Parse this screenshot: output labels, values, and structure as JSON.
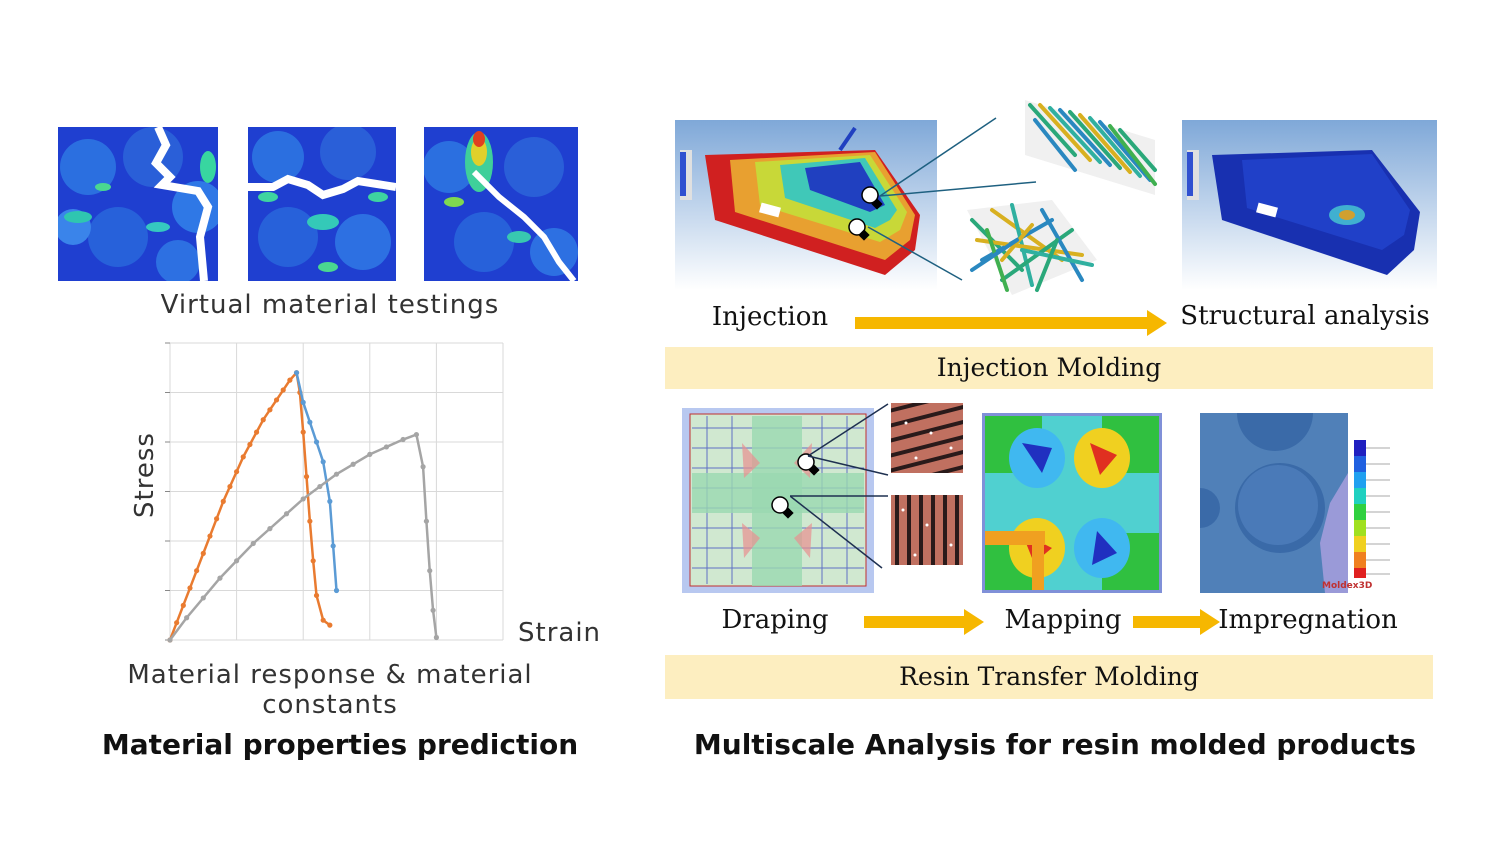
{
  "left": {
    "testing_caption": "Virtual material testings",
    "chart_caption": "Material response & material constants",
    "section_title": "Material properties prediction"
  },
  "right": {
    "injection_label": "Injection",
    "structural_label": "Structural analysis",
    "injection_banner": "Injection Molding",
    "draping_label": "Draping",
    "mapping_label": "Mapping",
    "impregnation_label": "Impregnation",
    "rtm_banner": "Resin Transfer Molding",
    "section_title": "Multiscale Analysis for resin molded products",
    "moldex_logo": "Moldex3D"
  },
  "colors": {
    "banner": "#fdeec0",
    "arrow": "#f6b700",
    "series_orange": "#e97b30",
    "series_blue": "#5b9bd5",
    "series_gray": "#a5a5a5"
  },
  "chart_data": {
    "type": "line",
    "xlabel": "Strain",
    "ylabel": "Stress",
    "grid": true,
    "legend": "none",
    "xlim": [
      0,
      5
    ],
    "ylim": [
      0,
      6
    ],
    "series": [
      {
        "color": "#e97b30",
        "x": [
          0,
          0.1,
          0.2,
          0.3,
          0.4,
          0.5,
          0.6,
          0.7,
          0.8,
          0.9,
          1.0,
          1.1,
          1.2,
          1.3,
          1.4,
          1.5,
          1.6,
          1.7,
          1.8,
          1.9,
          1.95,
          2.0,
          2.05,
          2.1,
          2.15,
          2.2,
          2.3,
          2.4
        ],
        "y": [
          0,
          0.35,
          0.7,
          1.05,
          1.4,
          1.75,
          2.1,
          2.45,
          2.8,
          3.1,
          3.4,
          3.7,
          3.95,
          4.2,
          4.45,
          4.65,
          4.85,
          5.05,
          5.25,
          5.4,
          5.0,
          4.2,
          3.3,
          2.4,
          1.6,
          0.9,
          0.4,
          0.3
        ]
      },
      {
        "color": "#5b9bd5",
        "x": [
          1.9,
          2.0,
          2.1,
          2.2,
          2.3,
          2.4,
          2.45,
          2.5
        ],
        "y": [
          5.4,
          4.8,
          4.4,
          4.0,
          3.6,
          2.8,
          1.9,
          1.0
        ]
      },
      {
        "color": "#a5a5a5",
        "x": [
          0,
          0.25,
          0.5,
          0.75,
          1.0,
          1.25,
          1.5,
          1.75,
          2.0,
          2.25,
          2.5,
          2.75,
          3.0,
          3.25,
          3.5,
          3.7,
          3.8,
          3.85,
          3.9,
          3.95,
          4.0
        ],
        "y": [
          0,
          0.45,
          0.85,
          1.25,
          1.6,
          1.95,
          2.25,
          2.55,
          2.85,
          3.1,
          3.35,
          3.55,
          3.75,
          3.9,
          4.05,
          4.15,
          3.5,
          2.4,
          1.4,
          0.6,
          0.05
        ]
      }
    ]
  }
}
